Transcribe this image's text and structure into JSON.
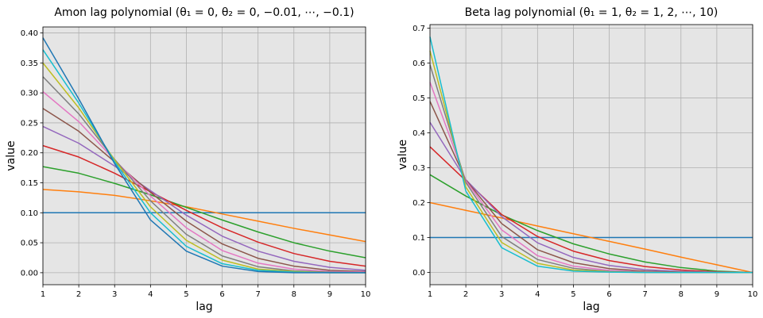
{
  "chart_data": [
    {
      "type": "line",
      "title": "Amon lag polynomial (θ₁ = 0,  θ₂ = 0, −0.01, ⋯, −0.1)",
      "xlabel": "lag",
      "ylabel": "value",
      "xlim": [
        1,
        10
      ],
      "ylim": [
        -0.02,
        0.41
      ],
      "xticks": [
        "1",
        "2",
        "3",
        "4",
        "5",
        "6",
        "7",
        "8",
        "9",
        "10"
      ],
      "yticks": [
        "0.00",
        "0.05",
        "0.10",
        "0.15",
        "0.20",
        "0.25",
        "0.30",
        "0.35",
        "0.40"
      ],
      "grid": true,
      "x": [
        1,
        2,
        3,
        4,
        5,
        6,
        7,
        8,
        9,
        10
      ],
      "series": [
        {
          "color": "#1f77b4",
          "values": [
            0.1,
            0.1,
            0.1,
            0.1,
            0.1,
            0.1,
            0.1,
            0.1,
            0.1,
            0.1
          ]
        },
        {
          "color": "#ff7f0e",
          "values": [
            0.139,
            0.135,
            0.129,
            0.12,
            0.11,
            0.098,
            0.086,
            0.074,
            0.063,
            0.052
          ]
        },
        {
          "color": "#2ca02c",
          "values": [
            0.177,
            0.166,
            0.149,
            0.13,
            0.109,
            0.088,
            0.068,
            0.05,
            0.036,
            0.025
          ]
        },
        {
          "color": "#d62728",
          "values": [
            0.212,
            0.193,
            0.166,
            0.135,
            0.104,
            0.075,
            0.051,
            0.032,
            0.019,
            0.011
          ]
        },
        {
          "color": "#9467bd",
          "values": [
            0.244,
            0.216,
            0.178,
            0.137,
            0.096,
            0.061,
            0.036,
            0.019,
            0.009,
            0.004
          ]
        },
        {
          "color": "#8c564b",
          "values": [
            0.274,
            0.236,
            0.185,
            0.134,
            0.086,
            0.048,
            0.024,
            0.011,
            0.004,
            0.002
          ]
        },
        {
          "color": "#e377c2",
          "values": [
            0.302,
            0.252,
            0.188,
            0.128,
            0.075,
            0.037,
            0.016,
            0.006,
            0.002,
            0.001
          ]
        },
        {
          "color": "#7f7f7f",
          "values": [
            0.327,
            0.265,
            0.189,
            0.12,
            0.064,
            0.028,
            0.01,
            0.003,
            0.001,
            0.0
          ]
        },
        {
          "color": "#bcbd22",
          "values": [
            0.35,
            0.275,
            0.188,
            0.11,
            0.054,
            0.021,
            0.006,
            0.002,
            0.0,
            0.0
          ]
        },
        {
          "color": "#17becf",
          "values": [
            0.372,
            0.283,
            0.185,
            0.1,
            0.044,
            0.015,
            0.004,
            0.001,
            0.0,
            0.0
          ]
        },
        {
          "color": "#1f77b4",
          "values": [
            0.392,
            0.29,
            0.182,
            0.088,
            0.036,
            0.011,
            0.002,
            0.0,
            0.0,
            0.0
          ]
        }
      ]
    },
    {
      "type": "line",
      "title": "Beta lag polynomial (θ₁ = 1,  θ₂ = 1, 2, ⋯, 10)",
      "xlabel": "lag",
      "ylabel": "value",
      "xlim": [
        1,
        10
      ],
      "ylim": [
        -0.035,
        0.71
      ],
      "xticks": [
        "1",
        "2",
        "3",
        "4",
        "5",
        "6",
        "7",
        "8",
        "9",
        "10"
      ],
      "yticks": [
        "0.0",
        "0.1",
        "0.2",
        "0.3",
        "0.4",
        "0.5",
        "0.6",
        "0.7"
      ],
      "grid": true,
      "x": [
        1,
        2,
        3,
        4,
        5,
        6,
        7,
        8,
        9,
        10
      ],
      "series": [
        {
          "color": "#1f77b4",
          "values": [
            0.1,
            0.1,
            0.1,
            0.1,
            0.1,
            0.1,
            0.1,
            0.1,
            0.1,
            0.1
          ]
        },
        {
          "color": "#ff7f0e",
          "values": [
            0.2,
            0.178,
            0.156,
            0.133,
            0.111,
            0.089,
            0.067,
            0.044,
            0.022,
            0.0
          ]
        },
        {
          "color": "#2ca02c",
          "values": [
            0.28,
            0.219,
            0.165,
            0.12,
            0.082,
            0.053,
            0.03,
            0.014,
            0.004,
            0.0
          ]
        },
        {
          "color": "#d62728",
          "values": [
            0.36,
            0.263,
            0.166,
            0.103,
            0.061,
            0.034,
            0.017,
            0.007,
            0.002,
            0.0
          ]
        },
        {
          "color": "#9467bd",
          "values": [
            0.43,
            0.266,
            0.16,
            0.085,
            0.043,
            0.02,
            0.008,
            0.003,
            0.001,
            0.0
          ]
        },
        {
          "color": "#8c564b",
          "values": [
            0.49,
            0.265,
            0.14,
            0.065,
            0.028,
            0.011,
            0.004,
            0.001,
            0.0,
            0.0
          ]
        },
        {
          "color": "#e377c2",
          "values": [
            0.545,
            0.263,
            0.122,
            0.048,
            0.018,
            0.006,
            0.002,
            0.0,
            0.0,
            0.0
          ]
        },
        {
          "color": "#7f7f7f",
          "values": [
            0.595,
            0.258,
            0.103,
            0.037,
            0.012,
            0.003,
            0.001,
            0.0,
            0.0,
            0.0
          ]
        },
        {
          "color": "#bcbd22",
          "values": [
            0.635,
            0.245,
            0.086,
            0.026,
            0.007,
            0.002,
            0.0,
            0.0,
            0.0,
            0.0
          ]
        },
        {
          "color": "#17becf",
          "values": [
            0.675,
            0.233,
            0.071,
            0.018,
            0.004,
            0.001,
            0.0,
            0.0,
            0.0,
            0.0
          ]
        }
      ]
    }
  ]
}
